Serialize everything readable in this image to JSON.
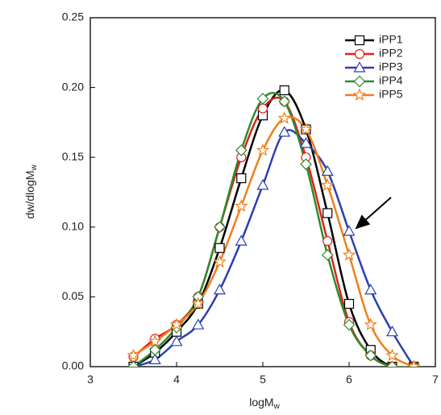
{
  "chart_data": {
    "type": "line",
    "xlabel": "logM",
    "xlabel_sub": "w",
    "ylabel": "dw/dlogM",
    "ylabel_sub": "w",
    "x": [
      3.5,
      3.75,
      4.0,
      4.25,
      4.5,
      4.75,
      5.0,
      5.25,
      5.5,
      5.75,
      6.0,
      6.25,
      6.5,
      6.75
    ],
    "series": [
      {
        "name": "iPP1",
        "color": "#000000",
        "marker": "square",
        "values": [
          0.0,
          0.01,
          0.025,
          0.045,
          0.085,
          0.135,
          0.18,
          0.198,
          0.17,
          0.11,
          0.045,
          0.012,
          0.0,
          0.0
        ]
      },
      {
        "name": "iPP2",
        "color": "#e0201b",
        "marker": "circle",
        "values": [
          0.007,
          0.02,
          0.03,
          0.05,
          0.1,
          0.15,
          0.185,
          0.19,
          0.15,
          0.09,
          0.032,
          0.008,
          0.0,
          0.0
        ]
      },
      {
        "name": "iPP3",
        "color": "#2b3fb0",
        "marker": "triangle",
        "values": [
          0.0,
          0.005,
          0.018,
          0.03,
          0.055,
          0.09,
          0.13,
          0.168,
          0.16,
          0.14,
          0.097,
          0.055,
          0.025,
          0.0
        ]
      },
      {
        "name": "iPP4",
        "color": "#2e8b2e",
        "marker": "diamond",
        "values": [
          0.0,
          0.012,
          0.028,
          0.05,
          0.1,
          0.155,
          0.192,
          0.19,
          0.145,
          0.08,
          0.03,
          0.008,
          0.0,
          0.0
        ]
      },
      {
        "name": "iPP5",
        "color": "#f07f1a",
        "marker": "star",
        "values": [
          0.008,
          0.018,
          0.03,
          0.045,
          0.075,
          0.115,
          0.155,
          0.178,
          0.17,
          0.13,
          0.08,
          0.03,
          0.008,
          0.0
        ]
      }
    ],
    "xlim": [
      3,
      7
    ],
    "xticks": [
      3,
      4,
      5,
      6,
      7
    ],
    "ylim": [
      0,
      0.25
    ],
    "yticks": [
      {
        "value": 0,
        "label": "0.00"
      },
      0.05,
      {
        "value": 0.1,
        "label": "0.10"
      },
      0.15,
      {
        "value": 0.2,
        "label": "0.20"
      },
      0.25
    ],
    "legend": "top-right"
  }
}
